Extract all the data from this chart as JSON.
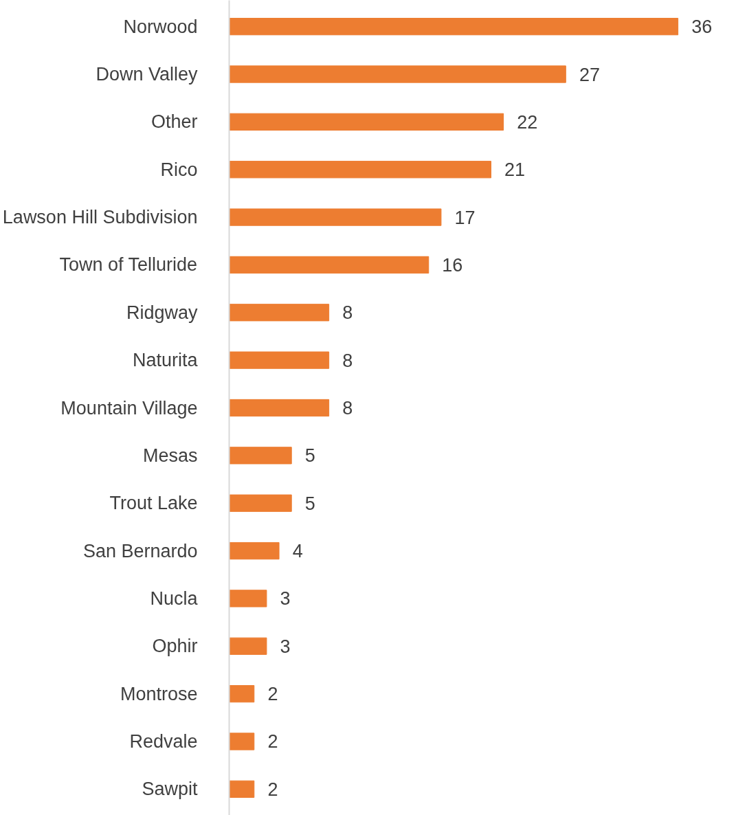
{
  "chart_data": {
    "type": "bar",
    "orientation": "horizontal",
    "categories": [
      "Norwood",
      "Down Valley",
      "Other",
      "Rico",
      "Lawson Hill Subdivision",
      "Town of Telluride",
      "Ridgway",
      "Naturita",
      "Mountain Village",
      "Mesas",
      "Trout Lake",
      "San Bernardo",
      "Nucla",
      "Ophir",
      "Montrose",
      "Redvale",
      "Sawpit"
    ],
    "values": [
      36,
      27,
      22,
      21,
      17,
      16,
      8,
      8,
      8,
      5,
      5,
      4,
      3,
      3,
      2,
      2,
      2
    ],
    "color": "#ed7d31",
    "data_labels": true
  }
}
